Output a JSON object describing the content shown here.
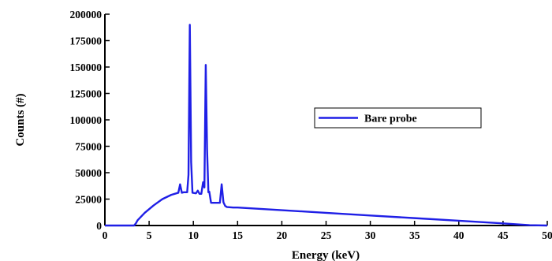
{
  "chart_data": {
    "type": "line",
    "xlabel": "Energy (keV)",
    "ylabel": "Counts (#)",
    "xlim": [
      0,
      50
    ],
    "ylim": [
      0,
      200000
    ],
    "x_ticks": [
      0,
      5,
      10,
      15,
      20,
      25,
      30,
      35,
      40,
      45,
      50
    ],
    "y_ticks": [
      0,
      25000,
      50000,
      75000,
      100000,
      125000,
      150000,
      175000,
      200000
    ],
    "x_tick_labels": [
      "0",
      "5",
      "10",
      "15",
      "20",
      "25",
      "30",
      "35",
      "40",
      "45",
      "50"
    ],
    "y_tick_labels": [
      "0",
      "25000",
      "50000",
      "75000",
      "100000",
      "125000",
      "150000",
      "175000",
      "200000"
    ],
    "grid": false,
    "legend_position": "right-middle",
    "series": [
      {
        "name": "Bare probe",
        "color": "#1f1fe6",
        "x": [
          0,
          3.3,
          3.5,
          3.7,
          4.5,
          5.5,
          6.5,
          7.5,
          8.3,
          8.5,
          8.7,
          8.9,
          9.3,
          9.45,
          9.6,
          9.75,
          9.9,
          10.3,
          10.5,
          10.7,
          10.9,
          11.1,
          11.25,
          11.4,
          11.55,
          11.7,
          11.8,
          12.0,
          12.5,
          13.0,
          13.2,
          13.4,
          13.6,
          13.8,
          14.5,
          15,
          20,
          25,
          30,
          35,
          40,
          45,
          48,
          50
        ],
        "y": [
          0,
          0,
          2000,
          5000,
          12000,
          19000,
          25000,
          29000,
          31000,
          39000,
          31000,
          31500,
          31500,
          48000,
          190000,
          60000,
          31000,
          30500,
          33000,
          30000,
          30000,
          41000,
          36000,
          152000,
          72000,
          31500,
          32000,
          21500,
          21500,
          21500,
          39000,
          22000,
          18500,
          17500,
          17000,
          17000,
          14500,
          12000,
          9500,
          7000,
          4500,
          2000,
          300,
          0
        ]
      }
    ]
  }
}
